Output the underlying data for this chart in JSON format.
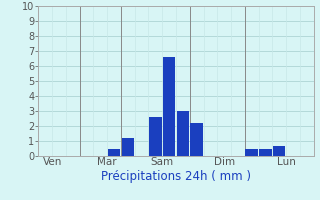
{
  "title": "",
  "xlabel": "Précipitations 24h ( mm )",
  "ylabel": "",
  "background_color": "#d8f5f5",
  "bar_color": "#1a3fbf",
  "ylim": [
    0,
    10
  ],
  "yticks": [
    0,
    1,
    2,
    3,
    4,
    5,
    6,
    7,
    8,
    9,
    10
  ],
  "day_labels": [
    "Ven",
    "Mar",
    "Sam",
    "Dim",
    "Lun"
  ],
  "day_tick_positions": [
    0.5,
    4.5,
    8.5,
    13.0,
    17.5
  ],
  "day_vline_positions": [
    0,
    3,
    6,
    11,
    15
  ],
  "total_bars": 20,
  "bar_values": [
    0,
    0,
    0,
    0,
    0,
    0.5,
    1.2,
    0,
    2.6,
    6.6,
    3.0,
    2.2,
    0,
    0,
    0,
    0.5,
    0.5,
    0.7,
    0,
    0
  ],
  "grid_color": "#aed4d4",
  "grid_minor_color": "#c8e8e8",
  "tick_label_color": "#555555",
  "xlabel_color": "#1a3fbf",
  "xlabel_fontsize": 8.5,
  "ytick_fontsize": 7,
  "xtick_fontsize": 7.5,
  "vline_color": "#888888",
  "spine_color": "#aaaaaa"
}
